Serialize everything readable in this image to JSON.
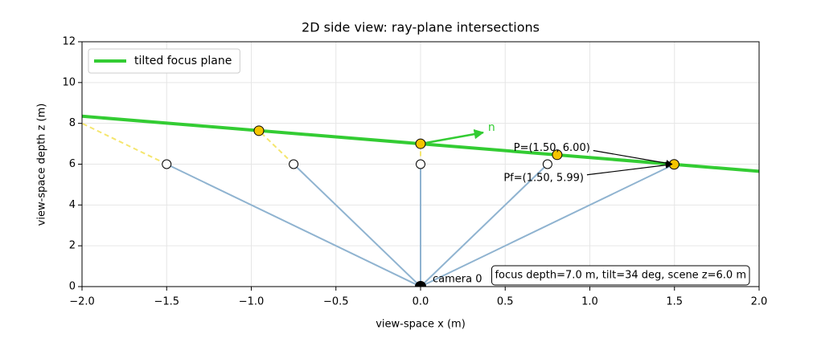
{
  "chart_data": {
    "type": "line",
    "title": "2D side view: ray-plane intersections",
    "x_label": "view-space x (m)",
    "y_label": "view-space depth z (m)",
    "xlim": [
      -2,
      2
    ],
    "ylim": [
      0,
      12
    ],
    "xticks": [
      {
        "value": -2,
        "label": "−2.0"
      },
      {
        "value": -1.5,
        "label": "−1.5"
      },
      {
        "value": -1,
        "label": "−1.0"
      },
      {
        "value": -0.5,
        "label": "−0.5"
      },
      {
        "value": 0,
        "label": "0.0"
      },
      {
        "value": 0.5,
        "label": "0.5"
      },
      {
        "value": 1,
        "label": "1.0"
      },
      {
        "value": 1.5,
        "label": "1.5"
      },
      {
        "value": 2,
        "label": "2.0"
      }
    ],
    "yticks": [
      0,
      2,
      4,
      6,
      8,
      10,
      12
    ],
    "grid": true,
    "legend": "upper left",
    "focus_plane": {
      "name": "tilted focus plane",
      "color": "#33cc33",
      "x": [
        -2,
        2
      ],
      "values": [
        8.35,
        5.65
      ]
    },
    "scene_points": {
      "x": [
        -1.5,
        -0.75,
        0,
        0.75,
        1.5
      ],
      "values": [
        6,
        6,
        6,
        6,
        6
      ],
      "ray_color": "#8fb3d0",
      "extension_color": "#f5e66e"
    },
    "intersections": {
      "x": [
        null,
        -0.955,
        0,
        0.807,
        1.498
      ],
      "values": [
        null,
        7.64,
        7,
        6.46,
        5.99
      ],
      "color": "#f5c400"
    },
    "camera": {
      "x": 0,
      "y": 0,
      "label": "camera 0"
    },
    "normal": {
      "x": [
        0,
        0.37
      ],
      "values": [
        7,
        7.55
      ],
      "label": "n",
      "color": "#33cc33"
    },
    "annotations": [
      "P=(1.50, 6.00)",
      "Pf=(1.50, 5.99)"
    ],
    "info": "focus depth=7.0 m, tilt=34 deg, scene z=6.0 m"
  }
}
